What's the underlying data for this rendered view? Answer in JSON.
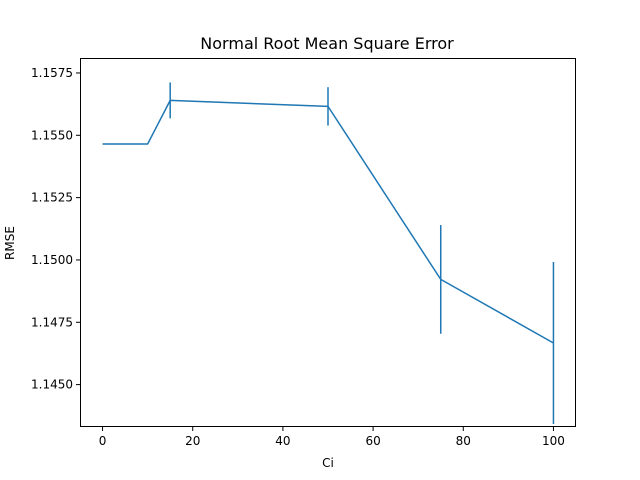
{
  "chart_data": {
    "type": "line",
    "title": "Normal Root Mean Square Error",
    "xlabel": "Ci",
    "ylabel": "RMSE",
    "xlim": [
      -5,
      105
    ],
    "ylim": [
      1.1433,
      1.1581
    ],
    "grid": false,
    "x_ticks": [
      0,
      20,
      40,
      60,
      80,
      100
    ],
    "x_tick_labels": [
      "0",
      "20",
      "40",
      "60",
      "80",
      "100"
    ],
    "y_ticks": [
      1.145,
      1.1475,
      1.15,
      1.1525,
      1.155,
      1.1575
    ],
    "y_tick_labels": [
      "1.1450",
      "1.1475",
      "1.1500",
      "1.1525",
      "1.1550",
      "1.1575"
    ],
    "series": [
      {
        "color": "#1f77b4",
        "x": [
          0,
          10,
          15,
          50,
          75,
          100
        ],
        "y": [
          1.15465,
          1.15465,
          1.1564,
          1.15616,
          1.14922,
          1.14667
        ],
        "yerr": [
          0,
          0,
          0.00072,
          0.00077,
          0.00218,
          0.00325
        ]
      }
    ]
  }
}
